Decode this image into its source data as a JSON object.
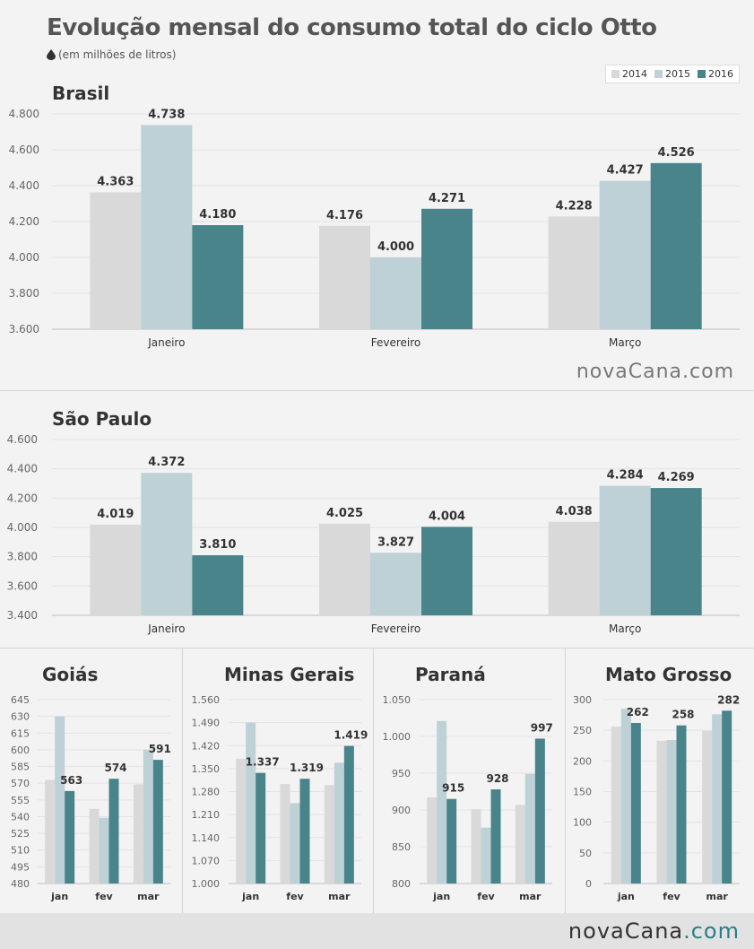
{
  "header": {
    "title": "Evolução mensal do consumo total do ciclo Otto",
    "subtitle": "(em milhões de litros)"
  },
  "legend": [
    {
      "label": "2014",
      "color": "#d9d9d9"
    },
    {
      "label": "2015",
      "color": "#bdd1d6"
    },
    {
      "label": "2016",
      "color": "#49848b"
    }
  ],
  "brand": {
    "main": "novaCana",
    "domain": ".com"
  },
  "chart_data": [
    {
      "id": "brasil",
      "type": "bar",
      "title": "Brasil",
      "categories": [
        "Janeiro",
        "Fevereiro",
        "Março"
      ],
      "series": [
        {
          "name": "2014",
          "values": [
            4363,
            4176,
            4228
          ],
          "labels": [
            "4.363",
            "4.176",
            "4.228"
          ]
        },
        {
          "name": "2015",
          "values": [
            4738,
            4000,
            4427
          ],
          "labels": [
            "4.738",
            "4.000",
            "4.427"
          ]
        },
        {
          "name": "2016",
          "values": [
            4180,
            4271,
            4526
          ],
          "labels": [
            "4.180",
            "4.271",
            "4.526"
          ]
        }
      ],
      "ylim": [
        3600,
        4800
      ],
      "yticks": [
        3600,
        3800,
        4000,
        4200,
        4400,
        4600,
        4800
      ],
      "ytick_labels": [
        "3.600",
        "3.800",
        "4.000",
        "4.200",
        "4.400",
        "4.600",
        "4.800"
      ],
      "grid": true
    },
    {
      "id": "sao-paulo",
      "type": "bar",
      "title": "São Paulo",
      "categories": [
        "Janeiro",
        "Fevereiro",
        "Março"
      ],
      "series": [
        {
          "name": "2014",
          "values": [
            4019,
            4025,
            4038
          ],
          "labels": [
            "4.019",
            "4.025",
            "4.038"
          ]
        },
        {
          "name": "2015",
          "values": [
            4372,
            3827,
            4284
          ],
          "labels": [
            "4.372",
            "3.827",
            "4.284"
          ]
        },
        {
          "name": "2016",
          "values": [
            3810,
            4004,
            4269
          ],
          "labels": [
            "3.810",
            "4.004",
            "4.269"
          ]
        }
      ],
      "ylim": [
        3400,
        4600
      ],
      "yticks": [
        3400,
        3600,
        3800,
        4000,
        4200,
        4400,
        4600
      ],
      "ytick_labels": [
        "3.400",
        "3.600",
        "3.800",
        "4.000",
        "4.200",
        "4.400",
        "4.600"
      ],
      "grid": true
    },
    {
      "id": "goias",
      "type": "bar",
      "title": "Goiás",
      "categories": [
        "jan",
        "fev",
        "mar"
      ],
      "series": [
        {
          "name": "2014",
          "values": [
            573,
            547,
            569
          ],
          "labels": [
            "",
            "",
            ""
          ]
        },
        {
          "name": "2015",
          "values": [
            630,
            539,
            600
          ],
          "labels": [
            "",
            "",
            ""
          ]
        },
        {
          "name": "2016",
          "values": [
            563,
            574,
            591
          ],
          "labels": [
            "563",
            "574",
            "591"
          ]
        }
      ],
      "ylim": [
        480,
        645
      ],
      "yticks": [
        480,
        495,
        510,
        525,
        540,
        555,
        570,
        585,
        600,
        615,
        630,
        645
      ],
      "ytick_labels": [
        "480",
        "495",
        "510",
        "525",
        "540",
        "555",
        "570",
        "585",
        "600",
        "615",
        "630",
        "645"
      ],
      "grid": true
    },
    {
      "id": "minas-gerais",
      "type": "bar",
      "title": "Minas Gerais",
      "categories": [
        "jan",
        "fev",
        "mar"
      ],
      "series": [
        {
          "name": "2014",
          "values": [
            1380,
            1303,
            1300
          ],
          "labels": [
            "",
            "",
            ""
          ]
        },
        {
          "name": "2015",
          "values": [
            1490,
            1245,
            1368
          ],
          "labels": [
            "",
            "",
            ""
          ]
        },
        {
          "name": "2016",
          "values": [
            1337,
            1319,
            1419
          ],
          "labels": [
            "1.337",
            "1.319",
            "1.419"
          ]
        }
      ],
      "ylim": [
        1000,
        1560
      ],
      "yticks": [
        1000,
        1070,
        1140,
        1210,
        1280,
        1350,
        1420,
        1490,
        1560
      ],
      "ytick_labels": [
        "1.000",
        "1.070",
        "1.140",
        "1.210",
        "1.280",
        "1.350",
        "1.420",
        "1.490",
        "1.560"
      ],
      "grid": true
    },
    {
      "id": "parana",
      "type": "bar",
      "title": "Paraná",
      "categories": [
        "jan",
        "fev",
        "mar"
      ],
      "series": [
        {
          "name": "2014",
          "values": [
            917,
            901,
            907
          ],
          "labels": [
            "",
            "",
            ""
          ]
        },
        {
          "name": "2015",
          "values": [
            1021,
            876,
            949
          ],
          "labels": [
            "",
            "",
            ""
          ]
        },
        {
          "name": "2016",
          "values": [
            915,
            928,
            997
          ],
          "labels": [
            "915",
            "928",
            "997"
          ]
        }
      ],
      "ylim": [
        800,
        1050
      ],
      "yticks": [
        800,
        850,
        900,
        950,
        1000,
        1050
      ],
      "ytick_labels": [
        "800",
        "850",
        "900",
        "950",
        "1.000",
        "1.050"
      ],
      "grid": true
    },
    {
      "id": "mato-grosso",
      "type": "bar",
      "title": "Mato Grosso",
      "categories": [
        "jan",
        "fev",
        "mar"
      ],
      "series": [
        {
          "name": "2014",
          "values": [
            256,
            233,
            249
          ],
          "labels": [
            "",
            "",
            ""
          ]
        },
        {
          "name": "2015",
          "values": [
            285,
            234,
            276
          ],
          "labels": [
            "",
            "",
            ""
          ]
        },
        {
          "name": "2016",
          "values": [
            262,
            258,
            282
          ],
          "labels": [
            "262",
            "258",
            "282"
          ]
        }
      ],
      "ylim": [
        0,
        300
      ],
      "yticks": [
        0,
        50,
        100,
        150,
        200,
        250,
        300
      ],
      "ytick_labels": [
        "0",
        "50",
        "100",
        "150",
        "200",
        "250",
        "300"
      ],
      "grid": true
    }
  ]
}
